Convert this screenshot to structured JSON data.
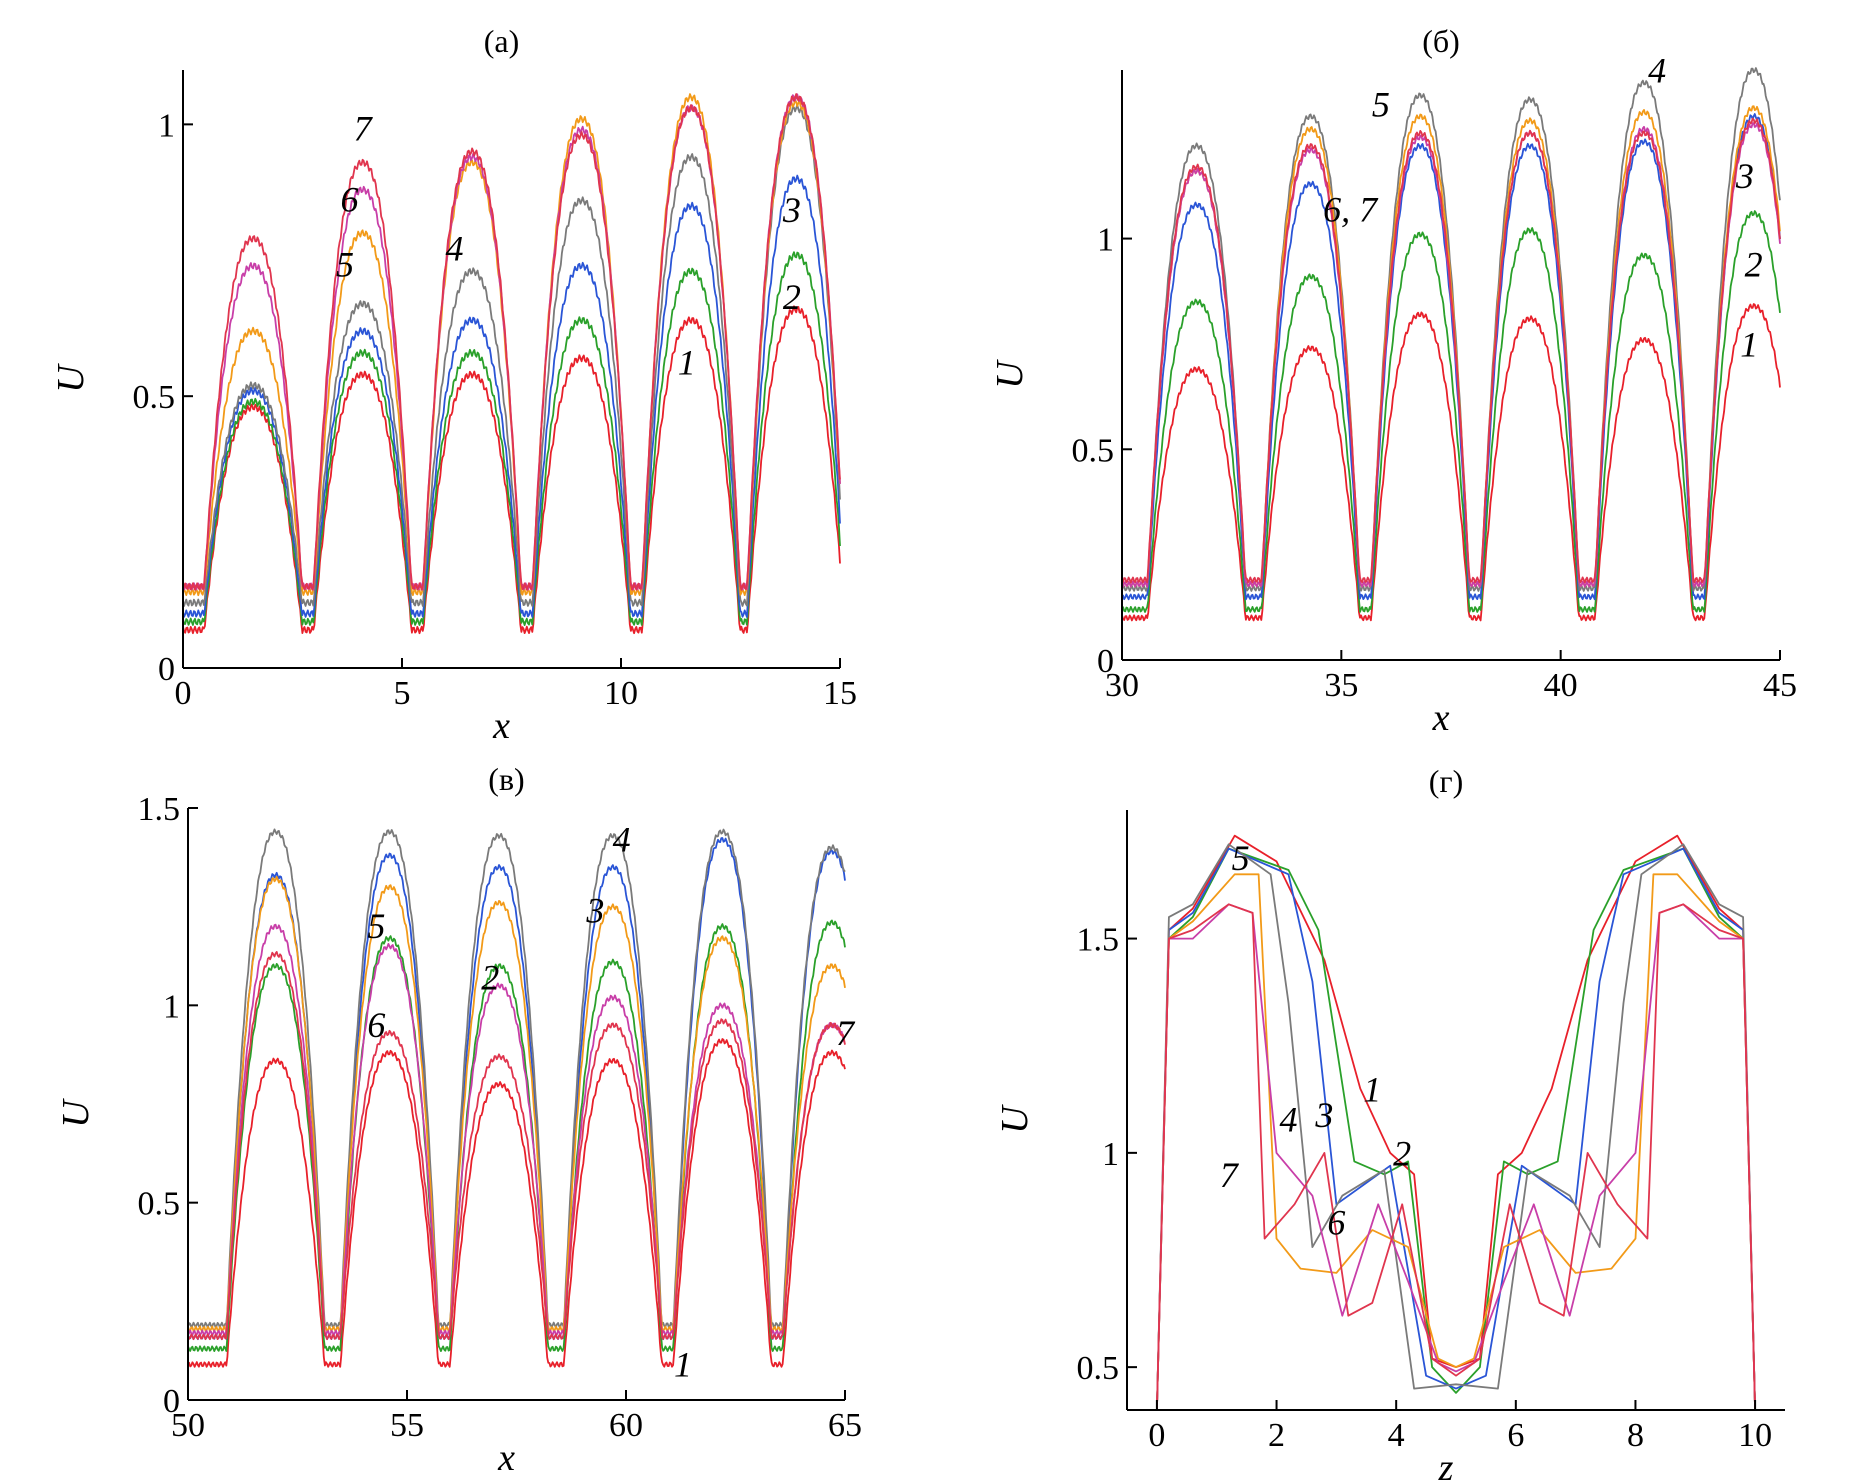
{
  "colors": {
    "1": "#e8202a",
    "2": "#2aa02a",
    "3": "#2a55d6",
    "4": "#7a7a7a",
    "5": "#f29a18",
    "6": "#c83ea8",
    "7": "#e0354e"
  },
  "chart_data": [
    {
      "type": "line",
      "title": "(а)",
      "xlabel": "x",
      "ylabel": "U",
      "xlim": [
        0,
        15
      ],
      "ylim": [
        0,
        1.1
      ],
      "xticks": [
        "0",
        "5",
        "10",
        "15"
      ],
      "yticks": [
        "0",
        "0.5",
        "1"
      ],
      "peaks_x": [
        1.6,
        4.1,
        6.6,
        9.1,
        11.6,
        14.0
      ],
      "series": [
        {
          "name": "1",
          "peaks": [
            0.48,
            0.54,
            0.54,
            0.57,
            0.64,
            0.66
          ],
          "base": 0.07
        },
        {
          "name": "2",
          "peaks": [
            0.49,
            0.58,
            0.58,
            0.64,
            0.73,
            0.76
          ],
          "base": 0.085
        },
        {
          "name": "3",
          "peaks": [
            0.51,
            0.62,
            0.64,
            0.74,
            0.85,
            0.9
          ],
          "base": 0.1
        },
        {
          "name": "4",
          "peaks": [
            0.52,
            0.67,
            0.73,
            0.86,
            0.94,
            1.03
          ],
          "base": 0.12
        },
        {
          "name": "5",
          "peaks": [
            0.62,
            0.8,
            0.93,
            1.01,
            1.05,
            1.04
          ],
          "base": 0.14
        },
        {
          "name": "6",
          "peaks": [
            0.74,
            0.88,
            0.94,
            0.99,
            1.03,
            1.05
          ],
          "base": 0.15
        },
        {
          "name": "7",
          "peaks": [
            0.79,
            0.93,
            0.95,
            0.98,
            1.03,
            1.05
          ],
          "base": 0.15
        }
      ],
      "annotations": [
        {
          "text": "7",
          "x": 4.1,
          "y": 0.97
        },
        {
          "text": "6",
          "x": 3.8,
          "y": 0.84
        },
        {
          "text": "5",
          "x": 3.7,
          "y": 0.72
        },
        {
          "text": "4",
          "x": 6.2,
          "y": 0.75
        },
        {
          "text": "3",
          "x": 13.9,
          "y": 0.82
        },
        {
          "text": "2",
          "x": 13.9,
          "y": 0.66
        },
        {
          "text": "1",
          "x": 11.5,
          "y": 0.54
        }
      ]
    },
    {
      "type": "line",
      "title": "(б)",
      "xlabel": "x",
      "ylabel": "U",
      "xlim": [
        30,
        45
      ],
      "ylim": [
        0,
        1.4
      ],
      "xticks": [
        "30",
        "35",
        "40",
        "45"
      ],
      "yticks": [
        "0",
        "0.5",
        "1"
      ],
      "peaks_x": [
        31.7,
        34.3,
        36.8,
        39.3,
        41.9,
        44.4
      ],
      "series": [
        {
          "name": "1",
          "peaks": [
            0.69,
            0.74,
            0.82,
            0.81,
            0.76,
            0.84
          ],
          "base": 0.1
        },
        {
          "name": "2",
          "peaks": [
            0.85,
            0.91,
            1.01,
            1.02,
            0.96,
            1.06
          ],
          "base": 0.12
        },
        {
          "name": "3",
          "peaks": [
            1.08,
            1.13,
            1.22,
            1.22,
            1.23,
            1.29
          ],
          "base": 0.15
        },
        {
          "name": "4",
          "peaks": [
            1.22,
            1.29,
            1.34,
            1.33,
            1.37,
            1.4
          ],
          "base": 0.17
        },
        {
          "name": "5",
          "peaks": [
            1.16,
            1.26,
            1.29,
            1.28,
            1.3,
            1.31
          ],
          "base": 0.18
        },
        {
          "name": "6",
          "peaks": [
            1.16,
            1.21,
            1.24,
            1.25,
            1.26,
            1.27
          ],
          "base": 0.18
        },
        {
          "name": "7",
          "peaks": [
            1.17,
            1.22,
            1.25,
            1.25,
            1.25,
            1.28
          ],
          "base": 0.19
        }
      ],
      "annotations": [
        {
          "text": "5",
          "x": 35.9,
          "y": 1.29
        },
        {
          "text": "4",
          "x": 42.2,
          "y": 1.37
        },
        {
          "text": "6, 7",
          "x": 35.2,
          "y": 1.04
        },
        {
          "text": "3",
          "x": 44.2,
          "y": 1.12
        },
        {
          "text": "2",
          "x": 44.4,
          "y": 0.91
        },
        {
          "text": "1",
          "x": 44.3,
          "y": 0.72
        }
      ]
    },
    {
      "type": "line",
      "title": "(в)",
      "xlabel": "x",
      "ylabel": "U",
      "xlim": [
        50,
        65
      ],
      "ylim": [
        0,
        1.5
      ],
      "xticks": [
        "50",
        "55",
        "60",
        "65"
      ],
      "yticks": [
        "0",
        "0.5",
        "1",
        "1.5"
      ],
      "peaks_x": [
        52.0,
        54.6,
        57.1,
        59.7,
        62.2,
        64.7
      ],
      "series": [
        {
          "name": "1",
          "peaks": [
            0.86,
            0.88,
            0.8,
            0.86,
            0.91,
            0.88
          ],
          "base": 0.09
        },
        {
          "name": "2",
          "peaks": [
            1.1,
            1.17,
            1.1,
            1.11,
            1.2,
            1.21
          ],
          "base": 0.13
        },
        {
          "name": "3",
          "peaks": [
            1.33,
            1.38,
            1.35,
            1.35,
            1.42,
            1.39
          ],
          "base": 0.16
        },
        {
          "name": "4",
          "peaks": [
            1.44,
            1.44,
            1.43,
            1.43,
            1.44,
            1.4
          ],
          "base": 0.19
        },
        {
          "name": "5",
          "peaks": [
            1.32,
            1.3,
            1.26,
            1.25,
            1.17,
            1.1
          ],
          "base": 0.18
        },
        {
          "name": "6",
          "peaks": [
            1.2,
            1.15,
            1.05,
            1.02,
            1.0,
            0.95
          ],
          "base": 0.17
        },
        {
          "name": "7",
          "peaks": [
            1.13,
            0.93,
            0.87,
            0.95,
            0.96,
            0.95
          ],
          "base": 0.16
        }
      ],
      "annotations": [
        {
          "text": "4",
          "x": 59.9,
          "y": 1.39
        },
        {
          "text": "5",
          "x": 54.3,
          "y": 1.17
        },
        {
          "text": "3",
          "x": 59.3,
          "y": 1.21
        },
        {
          "text": "2",
          "x": 56.9,
          "y": 1.04
        },
        {
          "text": "6",
          "x": 54.3,
          "y": 0.92
        },
        {
          "text": "7",
          "x": 65.0,
          "y": 0.9
        },
        {
          "text": "1",
          "x": 61.3,
          "y": 0.06
        }
      ]
    },
    {
      "type": "line",
      "title": "(г)",
      "xlabel": "z",
      "ylabel": "U",
      "xlim": [
        -0.5,
        10.5
      ],
      "ylim": [
        0.4,
        1.8
      ],
      "xticks": [
        "0",
        "2",
        "4",
        "6",
        "8",
        "10"
      ],
      "yticks": [
        "0.5",
        "1",
        "1.5"
      ],
      "series": [
        {
          "name": "1",
          "points": [
            [
              0,
              0.4
            ],
            [
              0.2,
              1.52
            ],
            [
              0.6,
              1.57
            ],
            [
              1.3,
              1.74
            ],
            [
              2.0,
              1.68
            ],
            [
              2.8,
              1.45
            ],
            [
              3.4,
              1.15
            ],
            [
              3.9,
              1.0
            ],
            [
              4.3,
              0.95
            ],
            [
              4.6,
              0.52
            ],
            [
              5.0,
              0.5
            ],
            [
              5.4,
              0.52
            ],
            [
              5.7,
              0.95
            ],
            [
              6.1,
              1.0
            ],
            [
              6.6,
              1.15
            ],
            [
              7.2,
              1.45
            ],
            [
              8.0,
              1.68
            ],
            [
              8.7,
              1.74
            ],
            [
              9.4,
              1.57
            ],
            [
              9.8,
              1.52
            ],
            [
              10,
              0.4
            ]
          ]
        },
        {
          "name": "2",
          "points": [
            [
              0,
              0.4
            ],
            [
              0.2,
              1.5
            ],
            [
              0.6,
              1.55
            ],
            [
              1.2,
              1.71
            ],
            [
              2.2,
              1.66
            ],
            [
              2.7,
              1.52
            ],
            [
              3.3,
              0.98
            ],
            [
              3.8,
              0.95
            ],
            [
              4.2,
              0.98
            ],
            [
              4.6,
              0.5
            ],
            [
              5.0,
              0.44
            ],
            [
              5.4,
              0.5
            ],
            [
              5.8,
              0.98
            ],
            [
              6.2,
              0.95
            ],
            [
              6.7,
              0.98
            ],
            [
              7.3,
              1.52
            ],
            [
              7.8,
              1.66
            ],
            [
              8.8,
              1.71
            ],
            [
              9.4,
              1.55
            ],
            [
              9.8,
              1.5
            ],
            [
              10,
              0.4
            ]
          ]
        },
        {
          "name": "3",
          "points": [
            [
              0,
              0.4
            ],
            [
              0.2,
              1.52
            ],
            [
              0.6,
              1.56
            ],
            [
              1.2,
              1.71
            ],
            [
              2.2,
              1.65
            ],
            [
              2.6,
              1.4
            ],
            [
              3.0,
              0.88
            ],
            [
              3.5,
              0.93
            ],
            [
              3.9,
              0.97
            ],
            [
              4.5,
              0.48
            ],
            [
              5.0,
              0.45
            ],
            [
              5.5,
              0.48
            ],
            [
              6.1,
              0.97
            ],
            [
              6.5,
              0.93
            ],
            [
              7.0,
              0.88
            ],
            [
              7.4,
              1.4
            ],
            [
              7.8,
              1.65
            ],
            [
              8.8,
              1.71
            ],
            [
              9.4,
              1.56
            ],
            [
              9.8,
              1.52
            ],
            [
              10,
              0.4
            ]
          ]
        },
        {
          "name": "4",
          "points": [
            [
              0,
              0.4
            ],
            [
              0.2,
              1.55
            ],
            [
              0.6,
              1.58
            ],
            [
              1.2,
              1.72
            ],
            [
              1.9,
              1.65
            ],
            [
              2.2,
              1.35
            ],
            [
              2.6,
              0.78
            ],
            [
              3.1,
              0.9
            ],
            [
              3.8,
              0.96
            ],
            [
              4.3,
              0.45
            ],
            [
              5.0,
              0.46
            ],
            [
              5.7,
              0.45
            ],
            [
              6.2,
              0.96
            ],
            [
              6.9,
              0.9
            ],
            [
              7.4,
              0.78
            ],
            [
              7.8,
              1.35
            ],
            [
              8.1,
              1.65
            ],
            [
              8.8,
              1.72
            ],
            [
              9.4,
              1.58
            ],
            [
              9.8,
              1.55
            ],
            [
              10,
              0.4
            ]
          ]
        },
        {
          "name": "5",
          "points": [
            [
              0,
              0.4
            ],
            [
              0.2,
              1.5
            ],
            [
              0.6,
              1.54
            ],
            [
              1.3,
              1.65
            ],
            [
              1.7,
              1.65
            ],
            [
              2.0,
              0.8
            ],
            [
              2.4,
              0.73
            ],
            [
              3.0,
              0.72
            ],
            [
              3.6,
              0.82
            ],
            [
              4.2,
              0.78
            ],
            [
              4.7,
              0.52
            ],
            [
              5.0,
              0.5
            ],
            [
              5.3,
              0.52
            ],
            [
              5.8,
              0.78
            ],
            [
              6.4,
              0.82
            ],
            [
              7.0,
              0.72
            ],
            [
              7.6,
              0.73
            ],
            [
              8.0,
              0.8
            ],
            [
              8.3,
              1.65
            ],
            [
              8.7,
              1.65
            ],
            [
              9.4,
              1.54
            ],
            [
              9.8,
              1.5
            ],
            [
              10,
              0.4
            ]
          ]
        },
        {
          "name": "6",
          "points": [
            [
              0,
              0.4
            ],
            [
              0.2,
              1.5
            ],
            [
              0.6,
              1.5
            ],
            [
              1.2,
              1.58
            ],
            [
              1.6,
              1.56
            ],
            [
              2.0,
              1.0
            ],
            [
              2.6,
              0.9
            ],
            [
              3.1,
              0.62
            ],
            [
              3.7,
              0.88
            ],
            [
              4.2,
              0.7
            ],
            [
              4.7,
              0.51
            ],
            [
              5.0,
              0.49
            ],
            [
              5.3,
              0.51
            ],
            [
              5.8,
              0.7
            ],
            [
              6.3,
              0.88
            ],
            [
              6.9,
              0.62
            ],
            [
              7.4,
              0.9
            ],
            [
              8.0,
              1.0
            ],
            [
              8.4,
              1.56
            ],
            [
              8.8,
              1.58
            ],
            [
              9.4,
              1.5
            ],
            [
              9.8,
              1.5
            ],
            [
              10,
              0.4
            ]
          ]
        },
        {
          "name": "7",
          "points": [
            [
              0,
              0.4
            ],
            [
              0.2,
              1.5
            ],
            [
              0.6,
              1.52
            ],
            [
              1.2,
              1.58
            ],
            [
              1.6,
              1.56
            ],
            [
              1.8,
              0.8
            ],
            [
              2.3,
              0.88
            ],
            [
              2.8,
              1.0
            ],
            [
              3.2,
              0.62
            ],
            [
              3.6,
              0.65
            ],
            [
              4.1,
              0.88
            ],
            [
              4.6,
              0.52
            ],
            [
              5.0,
              0.48
            ],
            [
              5.4,
              0.52
            ],
            [
              5.9,
              0.88
            ],
            [
              6.4,
              0.65
            ],
            [
              6.8,
              0.62
            ],
            [
              7.2,
              1.0
            ],
            [
              7.7,
              0.88
            ],
            [
              8.2,
              0.8
            ],
            [
              8.4,
              1.56
            ],
            [
              8.8,
              1.58
            ],
            [
              9.4,
              1.52
            ],
            [
              9.8,
              1.5
            ],
            [
              10,
              0.4
            ]
          ]
        }
      ],
      "annotations": [
        {
          "text": "5",
          "x": 1.4,
          "y": 1.66
        },
        {
          "text": "1",
          "x": 3.6,
          "y": 1.12
        },
        {
          "text": "4",
          "x": 2.2,
          "y": 1.05
        },
        {
          "text": "3",
          "x": 2.8,
          "y": 1.06
        },
        {
          "text": "2",
          "x": 4.1,
          "y": 0.97
        },
        {
          "text": "7",
          "x": 1.2,
          "y": 0.92
        },
        {
          "text": "6",
          "x": 3.0,
          "y": 0.81
        }
      ]
    }
  ]
}
